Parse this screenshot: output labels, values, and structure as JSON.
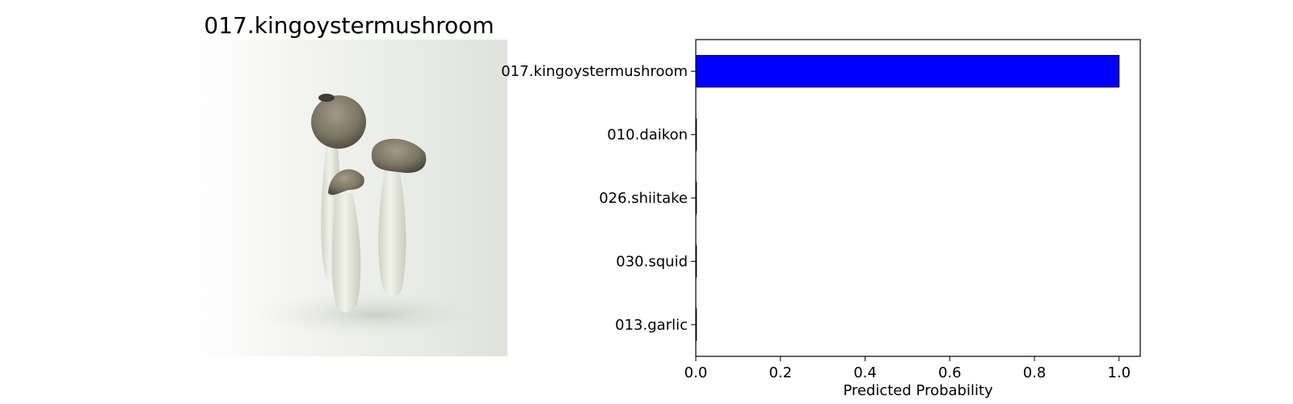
{
  "image_panel": {
    "title": "017.kingoystermushroom",
    "photo_icon": "king-oyster-mushroom-photo"
  },
  "chart_data": {
    "type": "bar",
    "orientation": "horizontal",
    "categories": [
      "017.kingoystermushroom",
      "010.daikon",
      "026.shiitake",
      "030.squid",
      "013.garlic"
    ],
    "values": [
      1.0,
      0.0,
      0.0,
      0.0,
      0.0
    ],
    "xlabel": "Predicted Probability",
    "ylabel": "",
    "xlim": [
      0,
      1.05
    ],
    "xticks": [
      0.0,
      0.2,
      0.4,
      0.6,
      0.8,
      1.0
    ],
    "xtick_labels": [
      "0.0",
      "0.2",
      "0.4",
      "0.6",
      "0.8",
      "1.0"
    ],
    "bar_color": "#0000ff",
    "grid": false
  }
}
